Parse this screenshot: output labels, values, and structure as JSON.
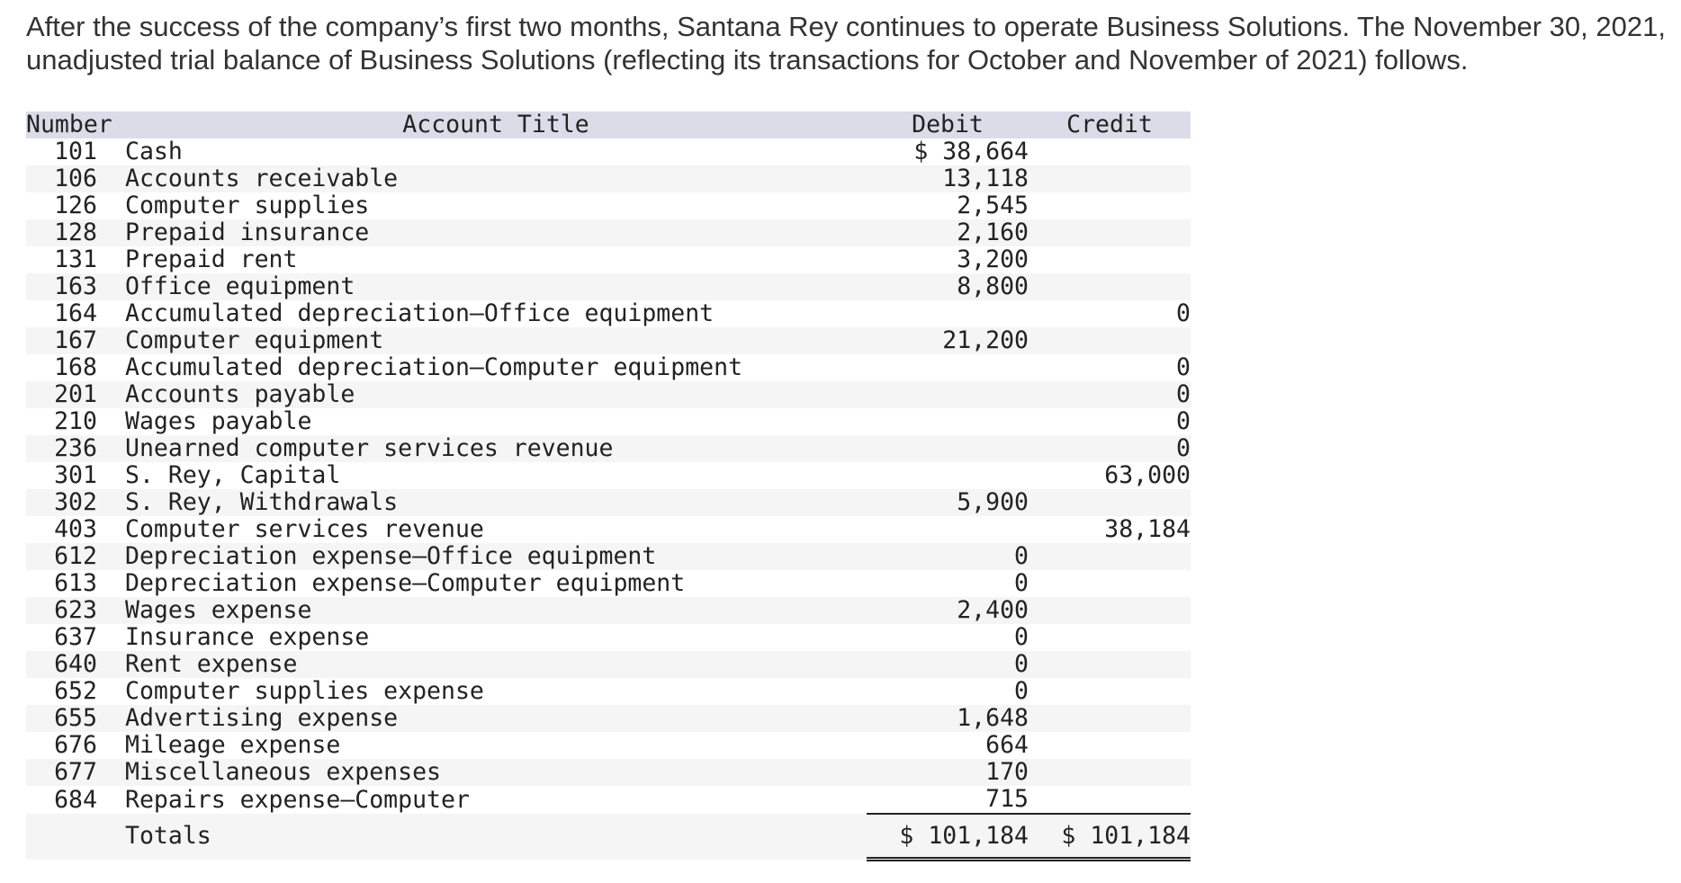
{
  "intro": {
    "line1": "After the success of the company’s first two months, Santana Rey continues to operate Business Solutions. The November 30, 2021,",
    "line2": "unadjusted trial balance of Business Solutions (reflecting its transactions for October and November of 2021) follows."
  },
  "table": {
    "headers": {
      "number": "Number",
      "account_title": "Account Title",
      "debit": "Debit",
      "credit": "Credit"
    },
    "rows": [
      {
        "number": "101",
        "title": "Cash",
        "debit": "$ 38,664",
        "credit": ""
      },
      {
        "number": "106",
        "title": "Accounts receivable",
        "debit": "13,118",
        "credit": ""
      },
      {
        "number": "126",
        "title": "Computer supplies",
        "debit": "2,545",
        "credit": ""
      },
      {
        "number": "128",
        "title": "Prepaid insurance",
        "debit": "2,160",
        "credit": ""
      },
      {
        "number": "131",
        "title": "Prepaid rent",
        "debit": "3,200",
        "credit": ""
      },
      {
        "number": "163",
        "title": "Office equipment",
        "debit": "8,800",
        "credit": ""
      },
      {
        "number": "164",
        "title": "Accumulated depreciation—Office equipment",
        "debit": "",
        "credit": "0"
      },
      {
        "number": "167",
        "title": "Computer equipment",
        "debit": "21,200",
        "credit": ""
      },
      {
        "number": "168",
        "title": "Accumulated depreciation—Computer equipment",
        "debit": "",
        "credit": "0"
      },
      {
        "number": "201",
        "title": "Accounts payable",
        "debit": "",
        "credit": "0"
      },
      {
        "number": "210",
        "title": "Wages payable",
        "debit": "",
        "credit": "0"
      },
      {
        "number": "236",
        "title": "Unearned computer services revenue",
        "debit": "",
        "credit": "0"
      },
      {
        "number": "301",
        "title": "S. Rey, Capital",
        "debit": "",
        "credit": "63,000"
      },
      {
        "number": "302",
        "title": "S. Rey, Withdrawals",
        "debit": "5,900",
        "credit": ""
      },
      {
        "number": "403",
        "title": "Computer services revenue",
        "debit": "",
        "credit": "38,184"
      },
      {
        "number": "612",
        "title": "Depreciation expense—Office equipment",
        "debit": "0",
        "credit": ""
      },
      {
        "number": "613",
        "title": "Depreciation expense—Computer equipment",
        "debit": "0",
        "credit": ""
      },
      {
        "number": "623",
        "title": "Wages expense",
        "debit": "2,400",
        "credit": ""
      },
      {
        "number": "637",
        "title": "Insurance expense",
        "debit": "0",
        "credit": ""
      },
      {
        "number": "640",
        "title": "Rent expense",
        "debit": "0",
        "credit": ""
      },
      {
        "number": "652",
        "title": "Computer supplies expense",
        "debit": "0",
        "credit": ""
      },
      {
        "number": "655",
        "title": "Advertising expense",
        "debit": "1,648",
        "credit": ""
      },
      {
        "number": "676",
        "title": "Mileage expense",
        "debit": "664",
        "credit": ""
      },
      {
        "number": "677",
        "title": "Miscellaneous expenses",
        "debit": "170",
        "credit": ""
      },
      {
        "number": "684",
        "title": "Repairs expense—Computer",
        "debit": "715",
        "credit": ""
      }
    ],
    "totals": {
      "label": "Totals",
      "debit": "$ 101,184",
      "credit": "$ 101,184"
    }
  }
}
